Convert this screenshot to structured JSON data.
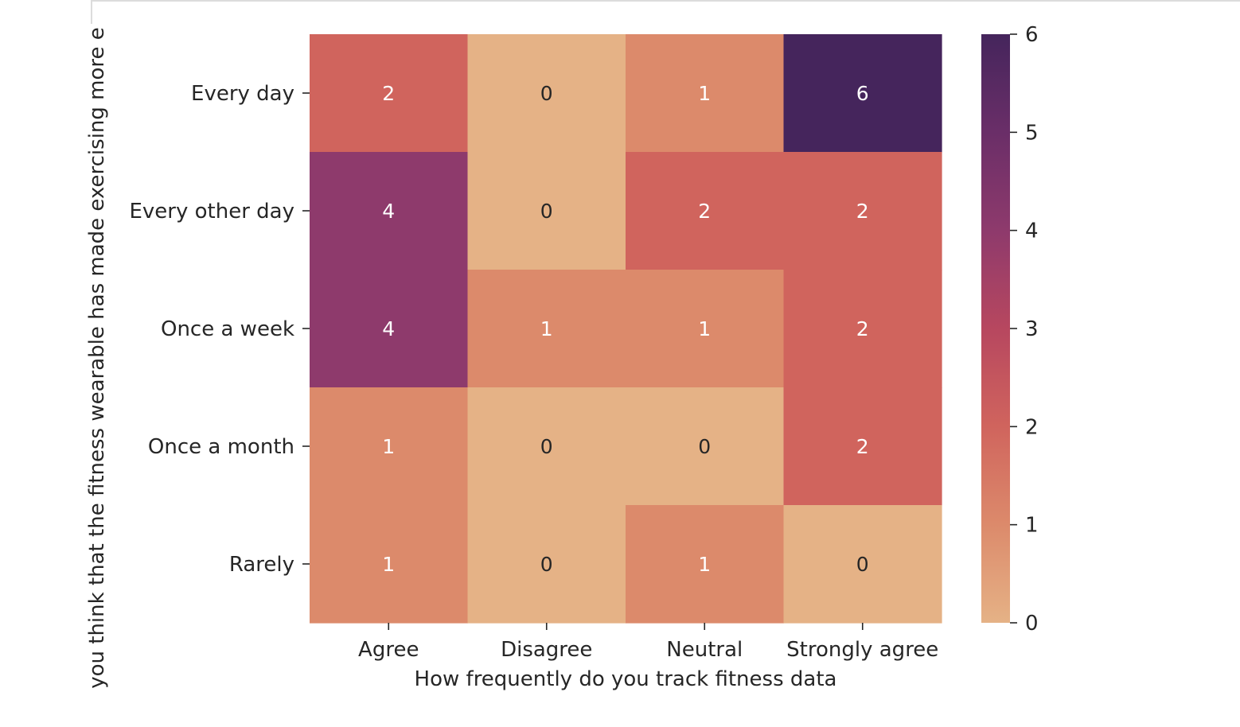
{
  "chart_data": {
    "type": "heatmap",
    "title": "",
    "xlabel": "How frequently do you track fitness data",
    "ylabel": "you think that the fitness wearable has made exercising more e",
    "x_categories": [
      "Agree",
      "Disagree",
      "Neutral",
      "Strongly agree"
    ],
    "y_categories": [
      "Every day",
      "Every other day",
      "Once a week",
      "Once a month",
      "Rarely"
    ],
    "values": [
      [
        2,
        0,
        1,
        6
      ],
      [
        4,
        0,
        2,
        2
      ],
      [
        4,
        1,
        1,
        2
      ],
      [
        1,
        0,
        0,
        2
      ],
      [
        1,
        0,
        1,
        0
      ]
    ],
    "vmin": 0,
    "vmax": 6,
    "colormap": "flare",
    "colorbar_ticks": [
      0,
      1,
      2,
      3,
      4,
      5,
      6
    ],
    "colors": {
      "0": "#e5b286",
      "1": "#dc8a6b",
      "2": "#d0645d",
      "3": "#b7475f",
      "4": "#8e3a6c",
      "5": "#6a2e68",
      "6": "#45255c"
    },
    "annotation_colors": {
      "light": "#ffffff",
      "dark": "#262626"
    }
  }
}
